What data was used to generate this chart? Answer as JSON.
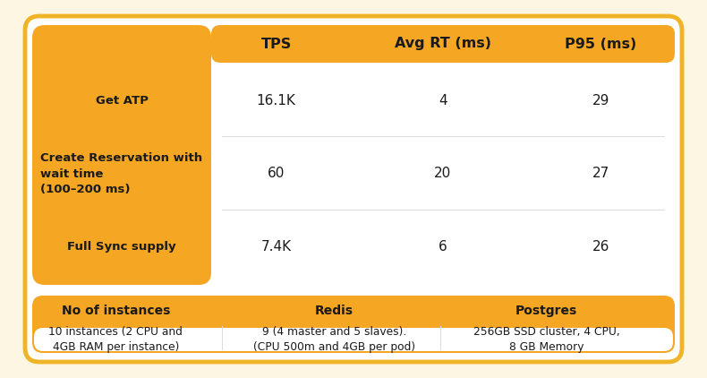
{
  "bg_color": "#fdf6e3",
  "outer_border_color": "#f0b429",
  "amber": "#f5a623",
  "white": "#ffffff",
  "dark_text": "#1a1a1a",
  "header_row": [
    "TPS",
    "Avg RT (ms)",
    "P95 (ms)"
  ],
  "row_labels": [
    "Get ATP",
    "Create Reservation with\nwait time\n(100–200 ms)",
    "Full Sync supply"
  ],
  "row_data": [
    [
      "16.1K",
      "4",
      "29"
    ],
    [
      "60",
      "20",
      "27"
    ],
    [
      "7.4K",
      "6",
      "26"
    ]
  ],
  "infra_headers": [
    "No of instances",
    "Redis",
    "Postgres"
  ],
  "infra_data": [
    "10 instances (2 CPU and\n4GB RAM per instance)",
    "9 (4 master and 5 slaves).\n(CPU 500m and 4GB per pod)",
    "256GB SSD cluster, 4 CPU,\n8 GB Memory"
  ],
  "fig_w": 7.9,
  "fig_h": 4.22,
  "dpi": 100
}
